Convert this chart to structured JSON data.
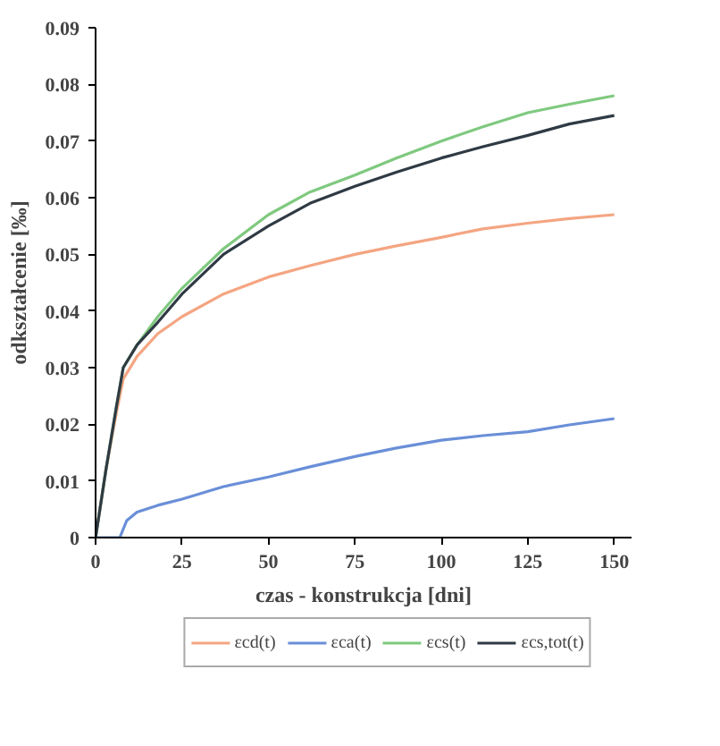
{
  "chart_data": {
    "type": "line",
    "xlabel": "czas - konstrukcja [dni]",
    "ylabel": "odkształcenie [‰]",
    "xlim": [
      0,
      155
    ],
    "ylim": [
      0,
      0.09
    ],
    "xticks": [
      0,
      25,
      50,
      75,
      100,
      125,
      150
    ],
    "yticks": [
      {
        "value": 0,
        "label": "0"
      },
      0.01,
      0.02,
      0.03,
      0.04,
      0.05,
      0.06,
      0.07,
      0.08,
      0.09
    ],
    "grid": false,
    "legend": "bottom",
    "line_style": "solid",
    "marker": "none",
    "series": [
      {
        "name": "εcd(t)",
        "color": "#f4a582",
        "x": [
          0,
          3,
          6,
          8,
          12,
          18,
          25,
          37,
          50,
          62,
          75,
          87,
          100,
          112,
          125,
          137,
          150
        ],
        "values": [
          0,
          0.012,
          0.022,
          0.028,
          0.032,
          0.036,
          0.039,
          0.043,
          0.046,
          0.048,
          0.05,
          0.0515,
          0.053,
          0.0545,
          0.0555,
          0.0563,
          0.057
        ]
      },
      {
        "name": "εca(t)",
        "color": "#6a8fd8",
        "x": [
          0,
          7,
          8,
          9,
          12,
          18,
          25,
          37,
          50,
          62,
          75,
          87,
          100,
          112,
          125,
          137,
          150
        ],
        "values": [
          0,
          0,
          0.0015,
          0.003,
          0.0045,
          0.0057,
          0.0068,
          0.009,
          0.0107,
          0.0125,
          0.0143,
          0.0158,
          0.0172,
          0.018,
          0.0187,
          0.0199,
          0.021
        ]
      },
      {
        "name": "εcs(t)",
        "color": "#7fc97f",
        "x": [
          0,
          3,
          6,
          8,
          12,
          18,
          25,
          37,
          50,
          62,
          75,
          87,
          100,
          112,
          125,
          137,
          150
        ],
        "values": [
          0,
          0.012,
          0.023,
          0.03,
          0.034,
          0.039,
          0.044,
          0.051,
          0.057,
          0.061,
          0.064,
          0.067,
          0.07,
          0.0725,
          0.075,
          0.0765,
          0.078
        ]
      },
      {
        "name": "εcs,tot(t)",
        "color": "#2f3a44",
        "x": [
          0,
          3,
          6,
          8,
          12,
          18,
          25,
          37,
          50,
          62,
          75,
          87,
          100,
          112,
          125,
          137,
          150
        ],
        "values": [
          0,
          0.012,
          0.023,
          0.03,
          0.034,
          0.038,
          0.043,
          0.05,
          0.055,
          0.059,
          0.062,
          0.0645,
          0.067,
          0.069,
          0.071,
          0.073,
          0.0745
        ]
      }
    ]
  }
}
